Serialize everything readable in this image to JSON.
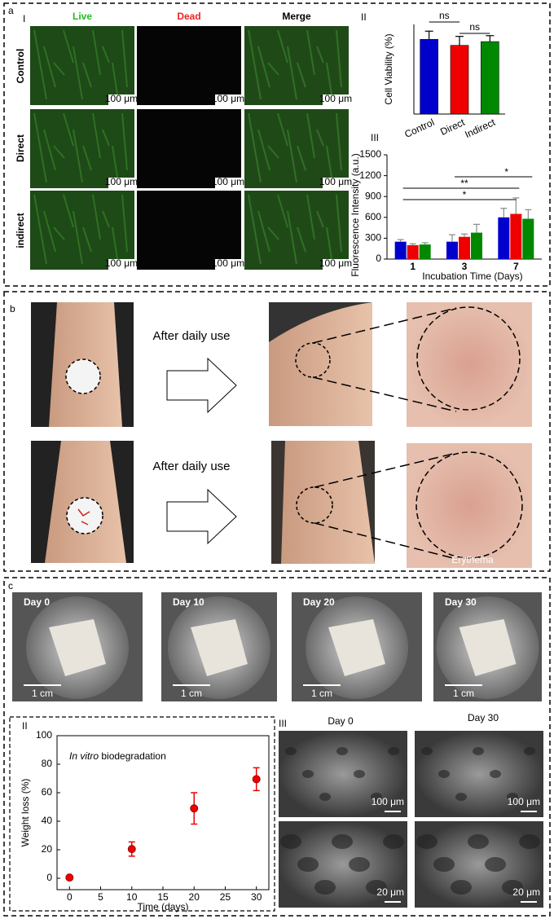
{
  "panel_a": {
    "label": "a",
    "sublabels": [
      "I",
      "II",
      "III"
    ],
    "columns": [
      "Live",
      "Dead",
      "Merge"
    ],
    "rows": [
      "Control",
      "Direct",
      "indirect"
    ],
    "scale_bar": "100 μm"
  },
  "panel_b": {
    "label": "b",
    "captions": [
      "After daily use",
      "After daily use"
    ],
    "annotation": "Erythema"
  },
  "panel_c": {
    "label": "c",
    "sublabels": [
      "I",
      "II",
      "III"
    ],
    "photos": [
      "Day 0",
      "Day 10",
      "Day 20",
      "Day 30"
    ],
    "photo_scale_bar": "1 cm",
    "sem_columns": [
      "Day 0",
      "Day 30"
    ],
    "sem_scale_bars": [
      "100 μm",
      "100 μm",
      "20 μm",
      "20 μm"
    ]
  },
  "chart_data": [
    {
      "type": "bar",
      "ylabel": "Cell Viability (%)",
      "categories": [
        "Control",
        "Direct",
        "Indirect"
      ],
      "values": [
        100,
        92,
        97
      ],
      "errors": [
        11,
        12,
        8
      ],
      "colors": [
        "#0000cc",
        "#ee0000",
        "#008800"
      ],
      "ylim": [
        0,
        120
      ],
      "annotations": [
        "ns",
        "ns"
      ]
    },
    {
      "type": "grouped_bar",
      "ylabel": "Fluorescence Intensity (a.u.)",
      "xlabel": "Incubation Time (Days)",
      "categories": [
        "1",
        "3",
        "7"
      ],
      "series": [
        {
          "color": "#0000cc",
          "values": [
            250,
            250,
            600
          ],
          "errors": [
            30,
            100,
            130
          ]
        },
        {
          "color": "#ee0000",
          "values": [
            200,
            320,
            650
          ],
          "errors": [
            20,
            40,
            230
          ]
        },
        {
          "color": "#008800",
          "values": [
            210,
            380,
            580
          ],
          "errors": [
            25,
            120,
            130
          ]
        }
      ],
      "ylim": [
        0,
        1500
      ],
      "yticks": [
        0,
        300,
        600,
        900,
        1200,
        1500
      ],
      "annotations": [
        "*",
        "**",
        "*"
      ]
    },
    {
      "type": "scatter",
      "ylabel": "Weight loss (%)",
      "xlabel": "Time (days)",
      "annotation": [
        "In vitro",
        "biodegradation"
      ],
      "x": [
        0,
        10,
        20,
        30
      ],
      "values": [
        0.5,
        20.5,
        49,
        69.5
      ],
      "errors": [
        1,
        5,
        11,
        8
      ],
      "color": "#ee0000",
      "xlim": [
        -2,
        32
      ],
      "xticks": [
        0,
        5,
        10,
        15,
        20,
        25,
        30
      ],
      "ylim": [
        -8,
        100
      ],
      "yticks": [
        0,
        20,
        40,
        60,
        80,
        100
      ]
    }
  ]
}
